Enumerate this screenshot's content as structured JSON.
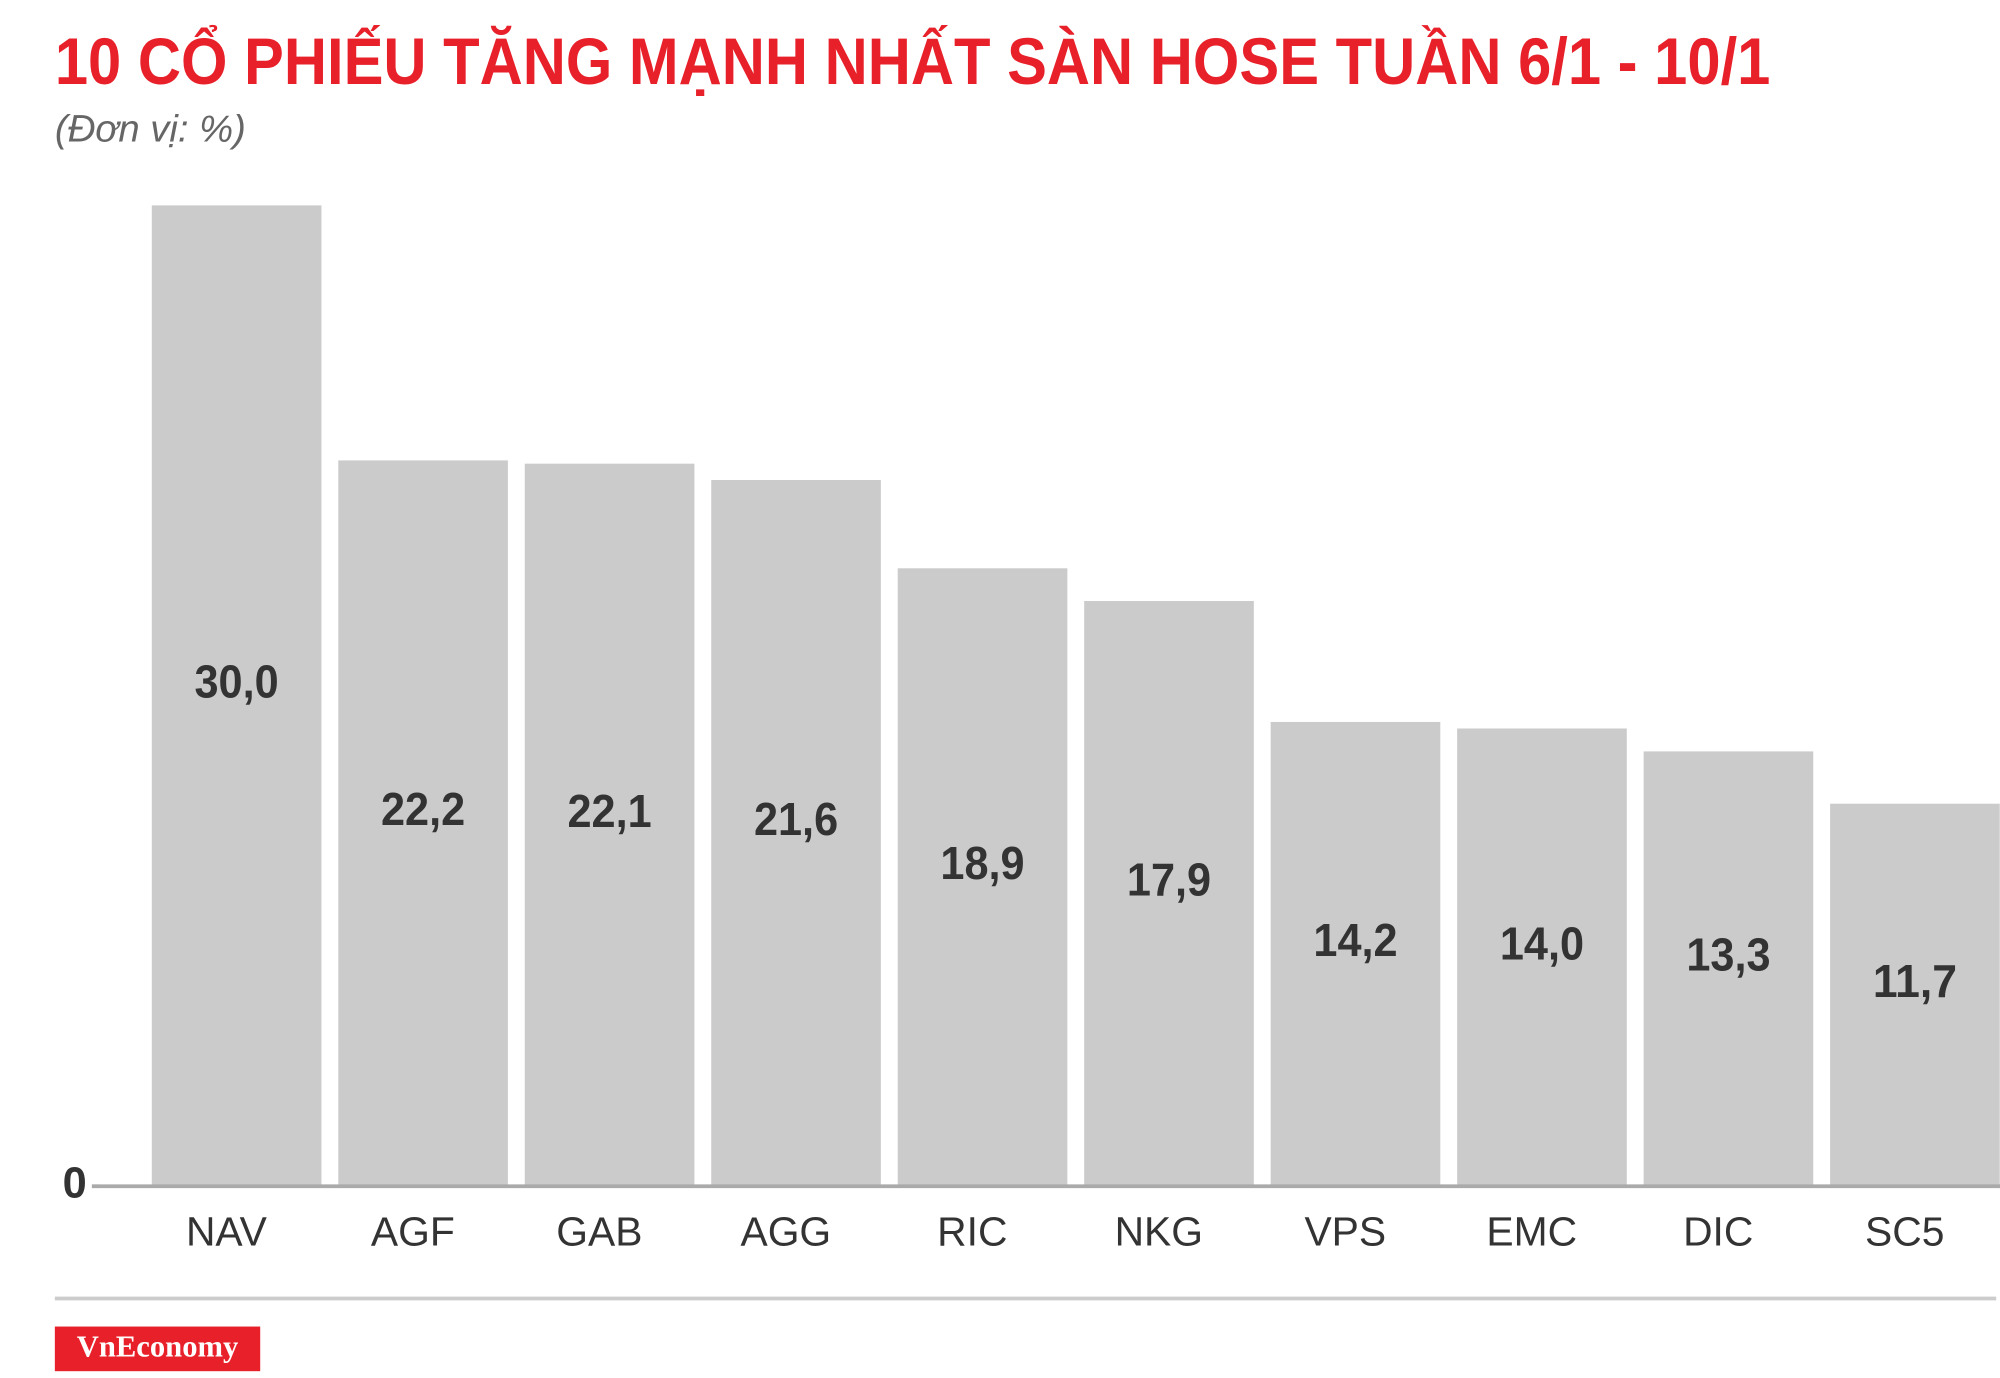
{
  "chart_data": {
    "type": "bar",
    "title": "10 CỔ PHIẾU TĂNG MẠNH NHẤT SÀN HOSE TUẦN 6/1 - 10/1",
    "subtitle": "(Đơn vị: %)",
    "categories": [
      "NAV",
      "AGF",
      "GAB",
      "AGG",
      "RIC",
      "NKG",
      "VPS",
      "EMC",
      "DIC",
      "SC5"
    ],
    "values": [
      30.0,
      22.2,
      22.1,
      21.6,
      18.9,
      17.9,
      14.2,
      14.0,
      13.3,
      11.7
    ],
    "value_labels": [
      "30,0",
      "22,2",
      "22,1",
      "21,6",
      "18,9",
      "17,9",
      "14,2",
      "14,0",
      "13,3",
      "11,7"
    ],
    "color": "#cccbcb",
    "ylim": [
      0,
      30
    ],
    "yticks": [
      0
    ],
    "brand": "VnEconomy"
  }
}
